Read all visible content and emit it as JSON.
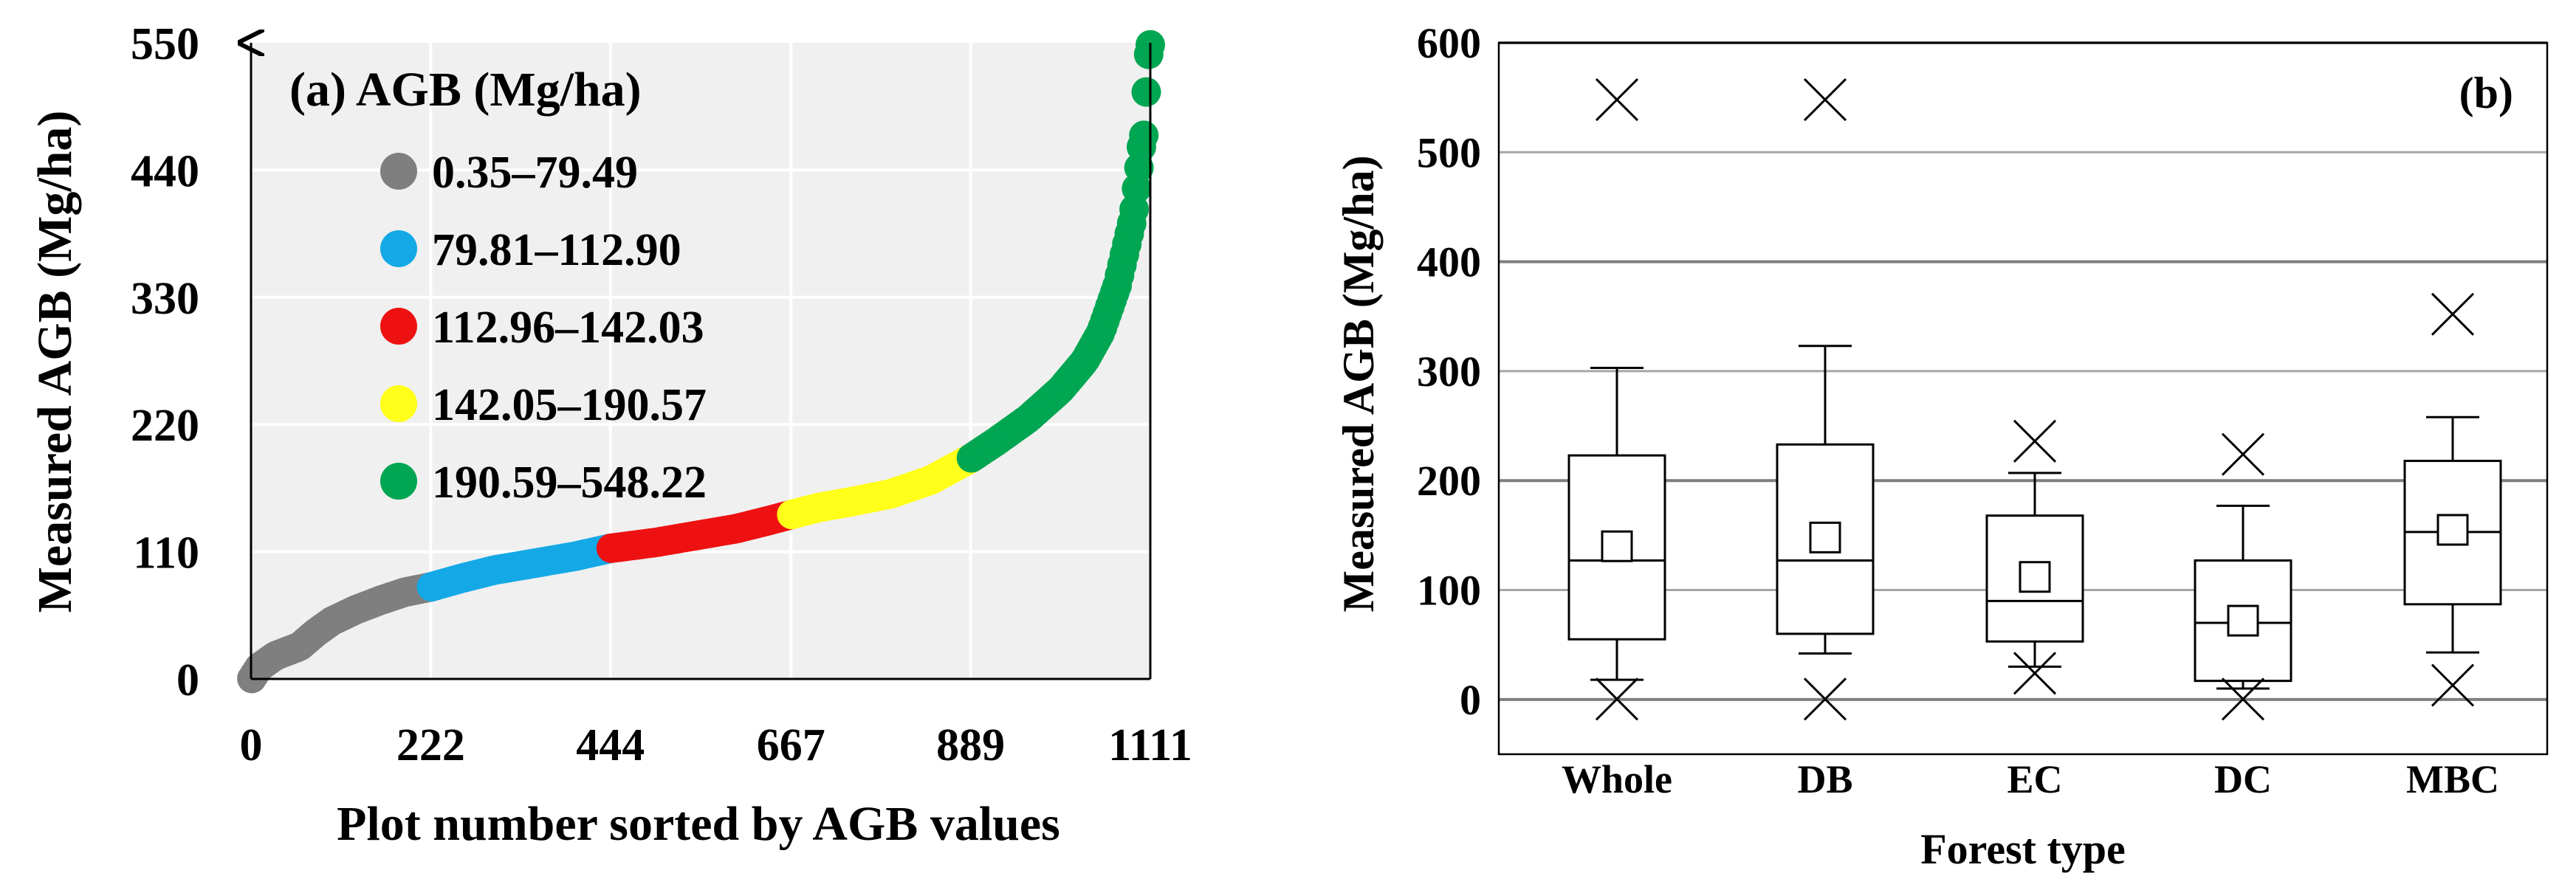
{
  "chart_data": [
    {
      "panel": "(a)",
      "type": "scatter",
      "title": "(a) AGB (Mg/ha)",
      "xlabel": "Plot number sorted by AGB values",
      "ylabel": "Measured AGB (Mg/ha)",
      "xlim": [
        0,
        1111
      ],
      "ylim": [
        0,
        550
      ],
      "xticks": [
        "0",
        "222",
        "444",
        "667",
        "889",
        "1111"
      ],
      "yticks": [
        "0",
        "110",
        "220",
        "330",
        "440",
        "550"
      ],
      "legend_position": "top-left",
      "grid": true,
      "classes": [
        {
          "label": "0.35–79.49",
          "color": "#7f7f7f",
          "start": 1,
          "end": 222
        },
        {
          "label": "79.81–112.90",
          "color": "#14a9e6",
          "start": 223,
          "end": 444
        },
        {
          "label": "112.96–142.03",
          "color": "#ee1111",
          "start": 445,
          "end": 667
        },
        {
          "label": "142.05–190.57",
          "color": "#ffff1a",
          "start": 668,
          "end": 889
        },
        {
          "label": "190.59–548.22",
          "color": "#00a651",
          "start": 890,
          "end": 1111
        }
      ],
      "curve": {
        "x": [
          1,
          10,
          30,
          60,
          80,
          100,
          130,
          160,
          190,
          222,
          260,
          300,
          350,
          400,
          444,
          500,
          550,
          600,
          640,
          667,
          700,
          740,
          790,
          840,
          889,
          920,
          960,
          1000,
          1030,
          1050,
          1070,
          1080,
          1090,
          1095,
          1100,
          1103,
          1105,
          1107,
          1109,
          1111
        ],
        "y": [
          0.35,
          10,
          20,
          28,
          40,
          50,
          60,
          68,
          75,
          79.5,
          87,
          94,
          100,
          106,
          112.9,
          118,
          124,
          130,
          137,
          142,
          148,
          153,
          160,
          172,
          190.6,
          205,
          225,
          250,
          275,
          300,
          340,
          370,
          400,
          430,
          460,
          470,
          485,
          530,
          540,
          548.22
        ]
      }
    },
    {
      "panel": "(b)",
      "type": "box",
      "title": "(b)",
      "xlabel": "Forest type",
      "ylabel": "Measured AGB (Mg/ha)",
      "ylim": [
        -50,
        600
      ],
      "yticks": [
        "0",
        "100",
        "200",
        "300",
        "400",
        "500",
        "600"
      ],
      "grid": true,
      "categories": [
        "Whole",
        "DB",
        "EC",
        "DC",
        "MBC"
      ],
      "boxes": [
        {
          "name": "Whole",
          "whisker_low": 18,
          "q1": 55,
          "median": 127,
          "q3": 223,
          "whisker_high": 303,
          "mean": 140,
          "min": 0.35,
          "max": 548
        },
        {
          "name": "DB",
          "whisker_low": 42,
          "q1": 60,
          "median": 127,
          "q3": 233,
          "whisker_high": 323,
          "mean": 148,
          "min": 0.35,
          "max": 548
        },
        {
          "name": "EC",
          "whisker_low": 30,
          "q1": 53,
          "median": 90,
          "q3": 168,
          "whisker_high": 207,
          "mean": 112,
          "min": 24,
          "max": 236
        },
        {
          "name": "DC",
          "whisker_low": 10,
          "q1": 17,
          "median": 70,
          "q3": 127,
          "whisker_high": 177,
          "mean": 72,
          "min": 0.35,
          "max": 224
        },
        {
          "name": "MBC",
          "whisker_low": 43,
          "q1": 87,
          "median": 153,
          "q3": 218,
          "whisker_high": 258,
          "mean": 155,
          "min": 13,
          "max": 352
        }
      ]
    }
  ]
}
